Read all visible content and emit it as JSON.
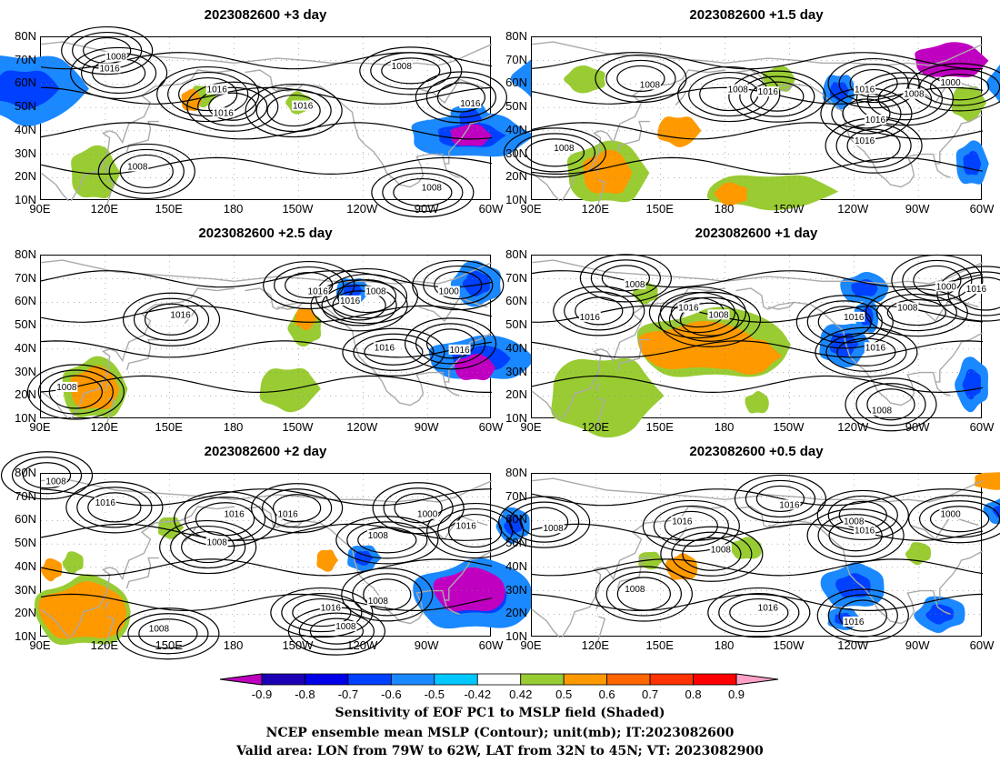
{
  "panels": [
    {
      "title": "2023082600  +3 day",
      "slot": "top-left",
      "blue": [
        [
          290,
          38,
          30,
          10
        ],
        [
          82,
          58,
          28,
          16
        ],
        [
          335,
          62,
          26,
          13
        ],
        [
          290,
          45,
          10,
          8
        ]
      ],
      "green": [
        [
          115,
          22,
          12,
          12
        ],
        [
          165,
          55,
          6,
          5
        ],
        [
          210,
          52,
          6,
          5
        ]
      ],
      "orange": [
        [
          160,
          53,
          5,
          5
        ]
      ],
      "dark": [
        [
          290,
          38,
          10,
          5
        ]
      ],
      "contours": [
        {
          "v": "1008",
          "lon": 125,
          "lat": 72
        },
        {
          "v": "1016",
          "lon": 122,
          "lat": 67
        },
        {
          "v": "1016",
          "lon": 172,
          "lat": 58
        },
        {
          "v": "1016",
          "lon": 175,
          "lat": 48
        },
        {
          "v": "1016",
          "lon": 212,
          "lat": 51
        },
        {
          "v": "1008",
          "lon": 258,
          "lat": 68
        },
        {
          "v": "1016",
          "lon": 290,
          "lat": 52
        },
        {
          "v": "1008",
          "lon": 135,
          "lat": 25
        },
        {
          "v": "1008",
          "lon": 272,
          "lat": 16
        }
      ]
    },
    {
      "title": "2023082600  +1.5 day",
      "slot": "top-right",
      "blue": [
        [
          295,
          26,
          8,
          10
        ],
        [
          233,
          57,
          8,
          8
        ],
        [
          320,
          60,
          18,
          14
        ]
      ],
      "green": [
        [
          125,
          22,
          20,
          14
        ],
        [
          200,
          14,
          30,
          8
        ],
        [
          115,
          62,
          10,
          6
        ],
        [
          205,
          62,
          8,
          6
        ],
        [
          293,
          52,
          8,
          8
        ]
      ],
      "orange": [
        [
          125,
          22,
          12,
          10
        ],
        [
          158,
          40,
          10,
          7
        ],
        [
          183,
          13,
          8,
          5
        ],
        [
          320,
          48,
          8,
          7
        ]
      ],
      "dark": [
        [
          285,
          70,
          18,
          8
        ]
      ],
      "contours": [
        {
          "v": "1008",
          "lon": 145,
          "lat": 60
        },
        {
          "v": "1016",
          "lon": 200,
          "lat": 57
        },
        {
          "v": "1008",
          "lon": 186,
          "lat": 58
        },
        {
          "v": "1016",
          "lon": 245,
          "lat": 58
        },
        {
          "v": "1008",
          "lon": 268,
          "lat": 56
        },
        {
          "v": "1000",
          "lon": 285,
          "lat": 61
        },
        {
          "v": "1016",
          "lon": 250,
          "lat": 45
        },
        {
          "v": "1016",
          "lon": 245,
          "lat": 36
        },
        {
          "v": "1008",
          "lon": 105,
          "lat": 33
        }
      ]
    },
    {
      "title": "2023082600  +2.5 day",
      "slot": "mid-left",
      "blue": [
        [
          295,
          36,
          26,
          10
        ],
        [
          235,
          65,
          8,
          6
        ],
        [
          293,
          68,
          12,
          10
        ]
      ],
      "green": [
        [
          115,
          23,
          16,
          14
        ],
        [
          205,
          23,
          14,
          10
        ],
        [
          213,
          49,
          8,
          8
        ]
      ],
      "orange": [
        [
          115,
          23,
          12,
          10
        ],
        [
          213,
          53,
          5,
          5
        ]
      ],
      "dark": [
        [
          292,
          32,
          10,
          6
        ]
      ],
      "contours": [
        {
          "v": "1016",
          "lon": 219,
          "lat": 65
        },
        {
          "v": "1016",
          "lon": 234,
          "lat": 61
        },
        {
          "v": "1008",
          "lon": 246,
          "lat": 65
        },
        {
          "v": "1000",
          "lon": 280,
          "lat": 65
        },
        {
          "v": "1016",
          "lon": 155,
          "lat": 55
        },
        {
          "v": "1016",
          "lon": 250,
          "lat": 41
        },
        {
          "v": "1016",
          "lon": 285,
          "lat": 40
        },
        {
          "v": "1008",
          "lon": 102,
          "lat": 24
        }
      ]
    },
    {
      "title": "2023082600  +1 day",
      "slot": "mid-right",
      "blue": [
        [
          245,
          66,
          12,
          7
        ],
        [
          235,
          42,
          12,
          10
        ],
        [
          295,
          25,
          8,
          12
        ],
        [
          246,
          54,
          6,
          8
        ]
      ],
      "green": [
        [
          175,
          42,
          38,
          16
        ],
        [
          123,
          20,
          26,
          18
        ],
        [
          143,
          64,
          6,
          5
        ],
        [
          195,
          17,
          6,
          5
        ]
      ],
      "orange": [
        [
          168,
          41,
          30,
          11
        ],
        [
          190,
          37,
          15,
          8
        ]
      ],
      "dark": [],
      "contours": [
        {
          "v": "1008",
          "lon": 138,
          "lat": 68
        },
        {
          "v": "1016",
          "lon": 163,
          "lat": 58
        },
        {
          "v": "1008",
          "lon": 177,
          "lat": 55
        },
        {
          "v": "1016",
          "lon": 117,
          "lat": 54
        },
        {
          "v": "1016",
          "lon": 240,
          "lat": 54
        },
        {
          "v": "1008",
          "lon": 265,
          "lat": 58
        },
        {
          "v": "1000",
          "lon": 283,
          "lat": 67
        },
        {
          "v": "1016",
          "lon": 297,
          "lat": 66
        },
        {
          "v": "1016",
          "lon": 250,
          "lat": 41
        },
        {
          "v": "1008",
          "lon": 253,
          "lat": 14
        }
      ]
    },
    {
      "title": "2023082600  +2 day",
      "slot": "bottom-left",
      "blue": [
        [
          292,
          28,
          30,
          16
        ],
        [
          240,
          44,
          8,
          6
        ],
        [
          310,
          58,
          8,
          8
        ]
      ],
      "green": [
        [
          110,
          21,
          24,
          16
        ],
        [
          150,
          57,
          6,
          5
        ],
        [
          105,
          42,
          5,
          5
        ]
      ],
      "orange": [
        [
          110,
          21,
          22,
          13
        ],
        [
          223,
          43,
          5,
          5
        ],
        [
          95,
          39,
          5,
          5
        ]
      ],
      "dark": [
        [
          290,
          30,
          18,
          10
        ]
      ],
      "contours": [
        {
          "v": "1008",
          "lon": 97,
          "lat": 77
        },
        {
          "v": "1016",
          "lon": 120,
          "lat": 68
        },
        {
          "v": "1016",
          "lon": 180,
          "lat": 63
        },
        {
          "v": "1016",
          "lon": 205,
          "lat": 63
        },
        {
          "v": "1008",
          "lon": 172,
          "lat": 51
        },
        {
          "v": "1008",
          "lon": 247,
          "lat": 54
        },
        {
          "v": "1000",
          "lon": 270,
          "lat": 63
        },
        {
          "v": "1016",
          "lon": 288,
          "lat": 58
        },
        {
          "v": "1016",
          "lon": 225,
          "lat": 23
        },
        {
          "v": "1008",
          "lon": 247,
          "lat": 26
        },
        {
          "v": "1008",
          "lon": 232,
          "lat": 15
        },
        {
          "v": "1008",
          "lon": 145,
          "lat": 14
        }
      ]
    },
    {
      "title": "2023082600  +0.5 day",
      "slot": "bottom-right",
      "blue": [
        [
          240,
          32,
          16,
          10
        ],
        [
          235,
          18,
          8,
          5
        ],
        [
          280,
          20,
          12,
          8
        ],
        [
          310,
          64,
          10,
          6
        ]
      ],
      "green": [
        [
          190,
          48,
          8,
          5
        ],
        [
          145,
          43,
          6,
          4
        ],
        [
          270,
          46,
          6,
          5
        ]
      ],
      "orange": [
        [
          160,
          40,
          8,
          6
        ],
        [
          305,
          77,
          10,
          4
        ]
      ],
      "dark": [],
      "contours": [
        {
          "v": "1016",
          "lon": 210,
          "lat": 67
        },
        {
          "v": "1016",
          "lon": 160,
          "lat": 60
        },
        {
          "v": "1008",
          "lon": 178,
          "lat": 48
        },
        {
          "v": "1008",
          "lon": 240,
          "lat": 60
        },
        {
          "v": "1016",
          "lon": 245,
          "lat": 56
        },
        {
          "v": "1000",
          "lon": 285,
          "lat": 63
        },
        {
          "v": "1008",
          "lon": 100,
          "lat": 57
        },
        {
          "v": "1008",
          "lon": 138,
          "lat": 31
        },
        {
          "v": "1016",
          "lon": 200,
          "lat": 23
        },
        {
          "v": "1016",
          "lon": 240,
          "lat": 17
        }
      ]
    }
  ],
  "axes": {
    "lon_min": 90,
    "lon_max": 300,
    "lat_min": 10,
    "lat_max": 80,
    "lat_ticks": [
      "80N",
      "70N",
      "60N",
      "50N",
      "40N",
      "30N",
      "20N",
      "10N"
    ],
    "lon_ticks": [
      {
        "v": 90,
        "label": "90E"
      },
      {
        "v": 120,
        "label": "120E"
      },
      {
        "v": 150,
        "label": "150E"
      },
      {
        "v": 180,
        "label": "180"
      },
      {
        "v": 210,
        "label": "150W"
      },
      {
        "v": 240,
        "label": "120W"
      },
      {
        "v": 270,
        "label": "90W"
      },
      {
        "v": 300,
        "label": "60W"
      }
    ]
  },
  "colorbar": {
    "colors": [
      "#c000c0",
      "#1c00b4",
      "#0000e8",
      "#0040ff",
      "#1a88ff",
      "#00c8ff",
      "#ffffff",
      "#99cc33",
      "#ff9900",
      "#ff6600",
      "#ff3300",
      "#ff0000",
      "#ffa0c8"
    ],
    "tick_labels": [
      "-0.9",
      "-0.8",
      "-0.7",
      "-0.6",
      "-0.5",
      "-0.42",
      "0.42",
      "0.5",
      "0.6",
      "0.7",
      "0.8",
      "0.9"
    ]
  },
  "footer": {
    "line1": "Sensitivity of EOF PC1 to MSLP field (Shaded)",
    "line2": "NCEP ensemble mean MSLP (Contour); unit(mb); IT:2023082600",
    "line3": "Valid area: LON from 79W to 62W, LAT from 32N to 45N; VT: 2023082900"
  },
  "colors": {
    "land": "#aaaaaa",
    "contour": "#000000",
    "grid": "#888888"
  }
}
